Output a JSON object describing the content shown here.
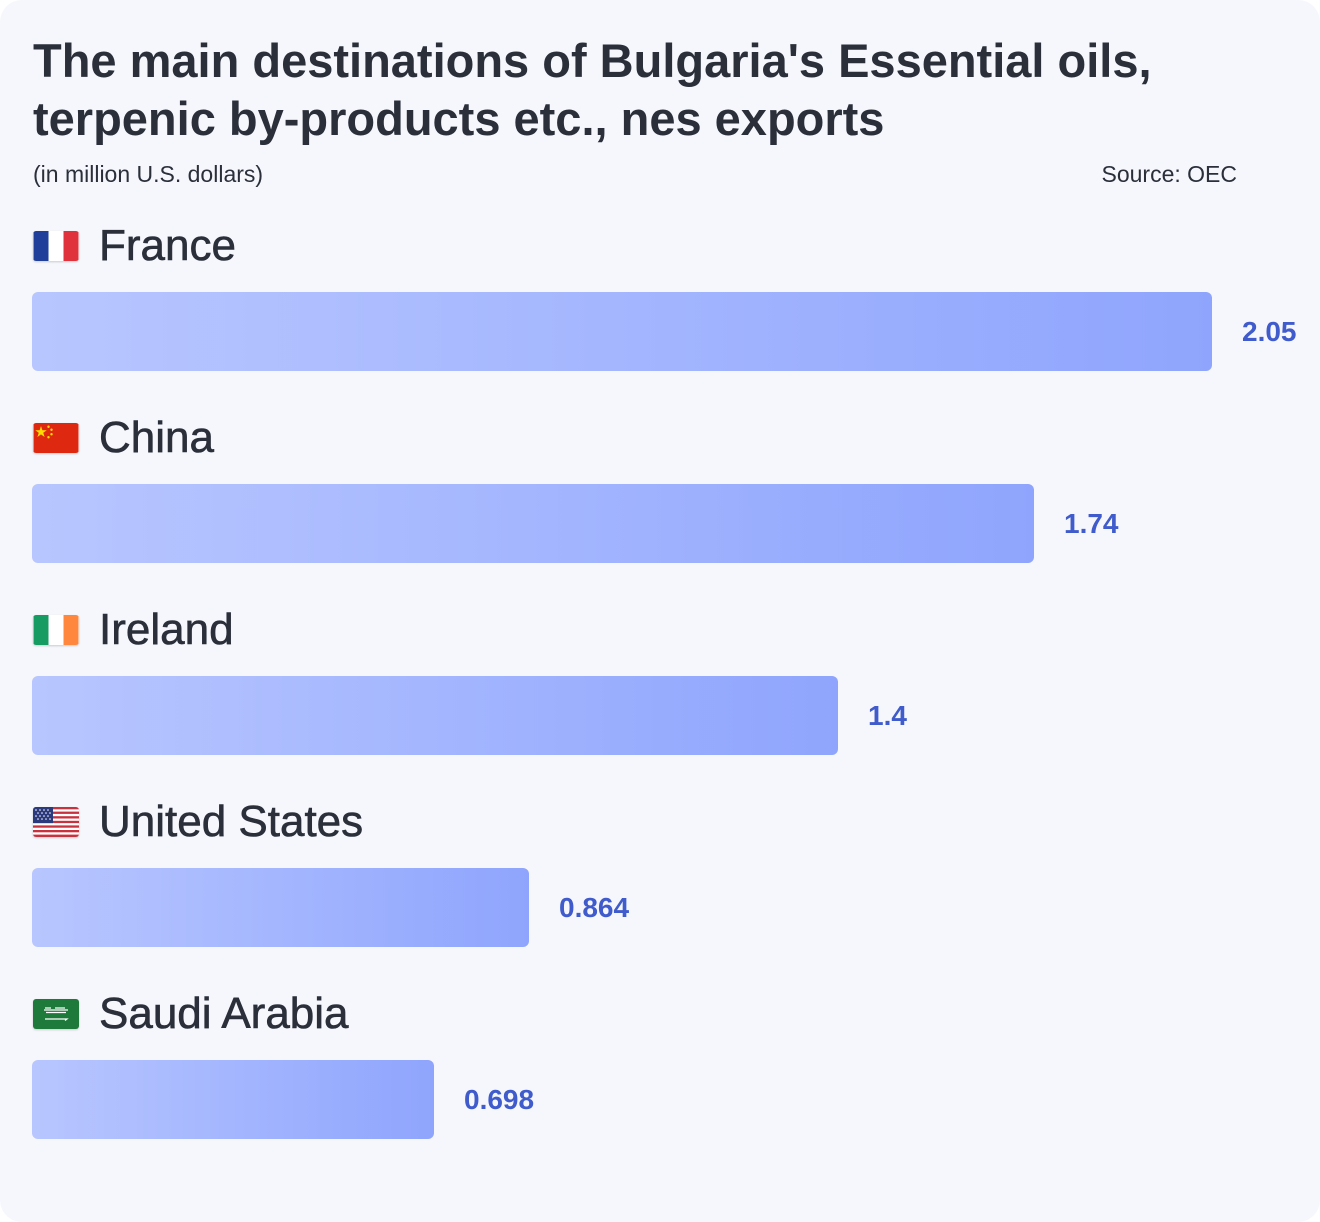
{
  "header": {
    "title": "The main destinations of Bulgaria's Essential oils, terpenic by-products etc., nes exports",
    "subtitle": "(in million U.S. dollars)",
    "source": "Source: OEC"
  },
  "colors": {
    "bar_start": "#b8c6ff",
    "bar_end": "#8fa5fd",
    "value_text": "#3f5bcc",
    "text": "#2a2f3a",
    "background": "#f6f7fc"
  },
  "chart_data": {
    "type": "bar",
    "orientation": "horizontal",
    "title": "The main destinations of Bulgaria's Essential oils, terpenic by-products etc., nes exports",
    "subtitle": "(in million U.S. dollars)",
    "categories": [
      "France",
      "China",
      "Ireland",
      "United States",
      "Saudi Arabia"
    ],
    "values": [
      2.05,
      1.74,
      1.4,
      0.864,
      0.698
    ],
    "value_labels": [
      "2.05",
      "1.74",
      "1.4",
      "0.864",
      "0.698"
    ],
    "flags": [
      "france-flag-icon",
      "china-flag-icon",
      "ireland-flag-icon",
      "united-states-flag-icon",
      "saudi-arabia-flag-icon"
    ],
    "xlim": [
      0,
      2.05
    ],
    "grid": false,
    "legend": "none"
  }
}
